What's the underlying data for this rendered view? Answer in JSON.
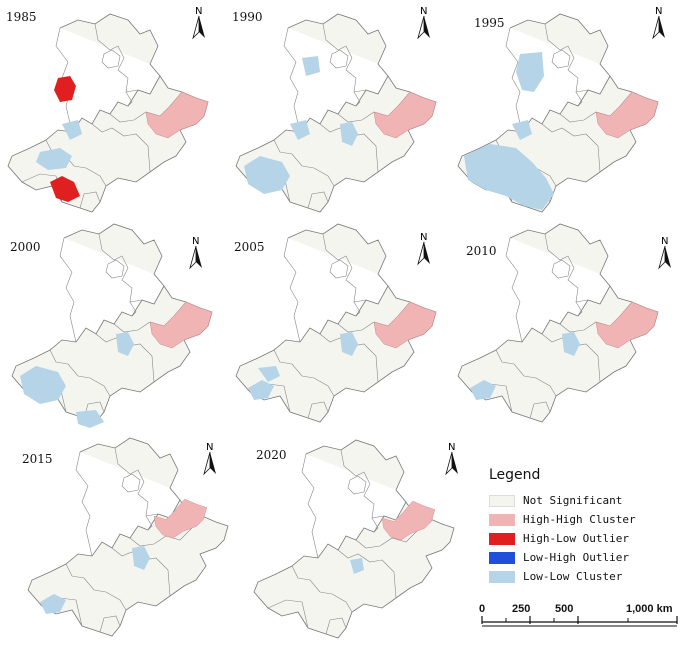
{
  "panels": [
    {
      "year": "1985"
    },
    {
      "year": "1990"
    },
    {
      "year": "1995"
    },
    {
      "year": "2000"
    },
    {
      "year": "2005"
    },
    {
      "year": "2010"
    },
    {
      "year": "2015"
    },
    {
      "year": "2020"
    }
  ],
  "north_label": "N",
  "legend": {
    "title": "Legend",
    "items": [
      {
        "label": "Not Significant",
        "color": "#f5f5f0"
      },
      {
        "label": "High-High Cluster",
        "color": "#f0b4b4"
      },
      {
        "label": "High-Low Outlier",
        "color": "#e02020"
      },
      {
        "label": "Low-High Outlier",
        "color": "#1f4fdb"
      },
      {
        "label": "Low-Low Cluster",
        "color": "#b5d4e8"
      }
    ]
  },
  "scale": {
    "labels": [
      "0",
      "250",
      "500",
      "1,000 km"
    ]
  }
}
